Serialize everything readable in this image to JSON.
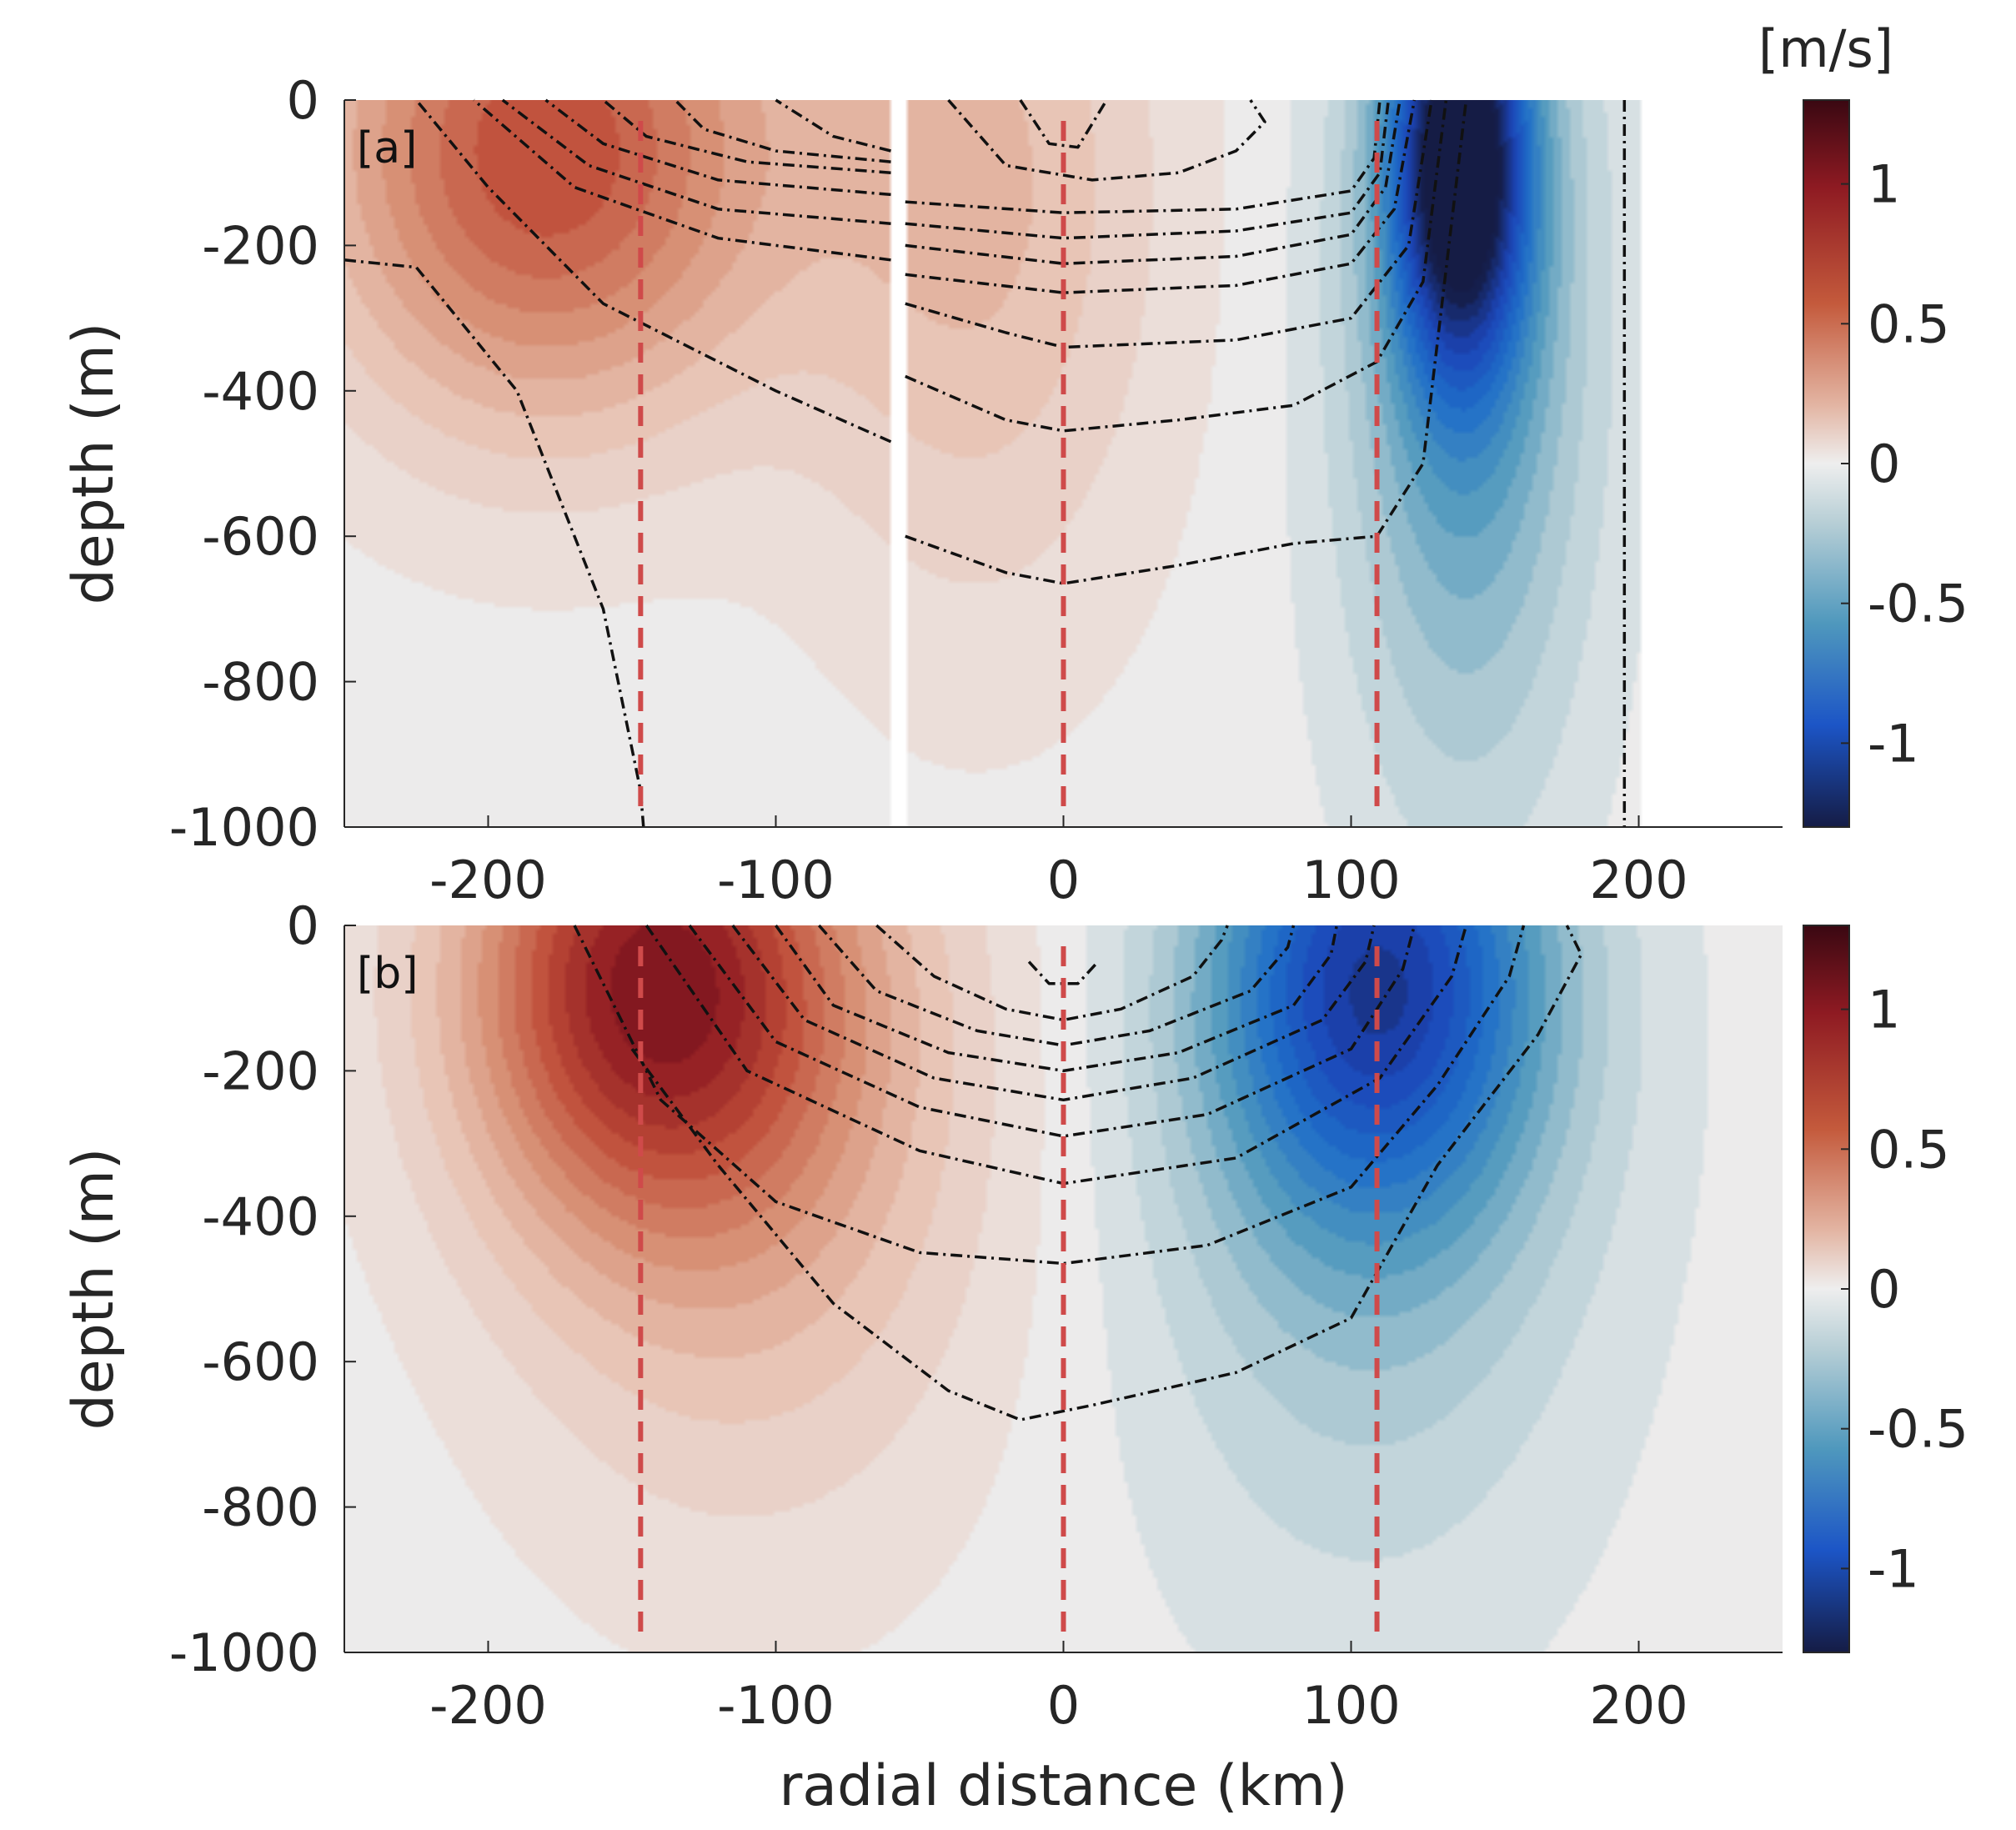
{
  "colors": {
    "positive_max": "#3a0812",
    "positive_strong": "#b83a2a",
    "positive_mid": "#d98a72",
    "positive_light": "#f0d9d0",
    "neutral": "#ececec",
    "negative_light": "#c9d9de",
    "negative_mid": "#5fa0ba",
    "negative_strong": "#1f5fc8",
    "negative_max": "#151c45",
    "contour": "#111111",
    "reference_line": "#cf4a4a"
  },
  "chart_data": {
    "type": "heatmap",
    "description_units": "[m/s]",
    "xlabel": "radial distance (km)",
    "ylabel": "depth (m)",
    "xlim": [
      -250,
      250
    ],
    "ylim": [
      -1000,
      0
    ],
    "x_ticks": [
      -200,
      -100,
      0,
      100,
      200
    ],
    "x_tick_labels": [
      "-200",
      "-100",
      "0",
      "100",
      "200"
    ],
    "y_ticks": [
      0,
      -200,
      -400,
      -600,
      -800,
      -1000
    ],
    "y_tick_labels": [
      "0",
      "-200",
      "-400",
      "-600",
      "-800",
      "-1000"
    ],
    "colorbar": {
      "label": "[m/s]",
      "range": [
        -1.3,
        1.3
      ],
      "ticks": [
        1,
        0.5,
        0,
        -0.5,
        -1
      ],
      "tick_labels": [
        "1",
        "0.5",
        "0",
        "-0.5",
        "-1"
      ]
    },
    "reference_lines_x": [
      -147,
      0,
      109
    ],
    "panels": [
      {
        "label": "[a]",
        "gap_x": [
          -60,
          -55
        ],
        "right_limit_x": 200,
        "jets": [
          {
            "x": -180,
            "depth": -70,
            "value": 0.75,
            "sx": 55,
            "sz": 260
          },
          {
            "x": -30,
            "depth": -120,
            "value": 0.3,
            "sx": 45,
            "sz": 400
          },
          {
            "x": 138,
            "depth": -80,
            "value": -1.25,
            "sx": 16,
            "sz": 200
          },
          {
            "x": 140,
            "depth": -300,
            "value": -0.5,
            "sx": 30,
            "sz": 450
          }
        ],
        "contours": [
          {
            "level": 1,
            "x": [
              -250,
              -225,
              -190,
              -160,
              -147,
              -146
            ],
            "depth": [
              -220,
              -230,
              -400,
              -700,
              -950,
              -1000
            ]
          },
          {
            "level": 2,
            "x": [
              -60,
              -100,
              -160,
              -200,
              -225
            ],
            "depth": [
              -470,
              -400,
              -280,
              -120,
              0
            ]
          },
          {
            "level": 3,
            "x": [
              -60,
              -120,
              -170,
              -205
            ],
            "depth": [
              -220,
              -190,
              -120,
              0
            ]
          },
          {
            "level": 4,
            "x": [
              -60,
              -120,
              -165,
              -195
            ],
            "depth": [
              -170,
              -150,
              -90,
              0
            ]
          },
          {
            "level": 5,
            "x": [
              -60,
              -120,
              -160,
              -180
            ],
            "depth": [
              -130,
              -110,
              -60,
              0
            ]
          },
          {
            "level": 6,
            "x": [
              -60,
              -110,
              -145,
              -160
            ],
            "depth": [
              -100,
              -85,
              -50,
              0
            ]
          },
          {
            "level": 7,
            "x": [
              -60,
              -100,
              -125,
              -135
            ],
            "depth": [
              -85,
              -70,
              -40,
              0
            ]
          },
          {
            "level": 8,
            "x": [
              -60,
              -80,
              -100
            ],
            "depth": [
              -70,
              -50,
              0
            ]
          },
          {
            "level": 9,
            "x": [
              -55,
              -20,
              0,
              40,
              80,
              109,
              125,
              140
            ],
            "depth": [
              -600,
              -650,
              -665,
              -640,
              -610,
              -600,
              -500,
              0
            ]
          },
          {
            "level": 10,
            "x": [
              -55,
              -20,
              0,
              40,
              80,
              109,
              125,
              133
            ],
            "depth": [
              -380,
              -440,
              -455,
              -440,
              -420,
              -360,
              -250,
              0
            ]
          },
          {
            "level": 11,
            "x": [
              -55,
              -20,
              0,
              60,
              100,
              120,
              128
            ],
            "depth": [
              -280,
              -320,
              -340,
              -330,
              -300,
              -200,
              0
            ]
          },
          {
            "level": 12,
            "x": [
              -55,
              0,
              60,
              100,
              115,
              122
            ],
            "depth": [
              -240,
              -265,
              -255,
              -225,
              -150,
              0
            ]
          },
          {
            "level": 13,
            "x": [
              -55,
              0,
              60,
              100,
              112,
              117
            ],
            "depth": [
              -200,
              -225,
              -215,
              -185,
              -120,
              0
            ]
          },
          {
            "level": 14,
            "x": [
              -55,
              0,
              60,
              100,
              110,
              113
            ],
            "depth": [
              -170,
              -190,
              -180,
              -155,
              -100,
              0
            ]
          },
          {
            "level": 15,
            "x": [
              -55,
              0,
              60,
              100,
              108,
              110
            ],
            "depth": [
              -140,
              -155,
              -150,
              -125,
              -80,
              0
            ]
          },
          {
            "level": 16,
            "x": [
              -40,
              -20,
              10,
              40,
              60,
              70,
              65
            ],
            "depth": [
              0,
              -90,
              -110,
              -100,
              -70,
              -30,
              0
            ]
          },
          {
            "level": 17,
            "x": [
              -15,
              -5,
              5,
              15
            ],
            "depth": [
              0,
              -60,
              -65,
              0
            ]
          },
          {
            "level": 18,
            "x": [
              195,
              195
            ],
            "depth": [
              0,
              -1000
            ]
          }
        ]
      },
      {
        "label": "[b]",
        "jets": [
          {
            "x": -145,
            "depth": -70,
            "value": 0.8,
            "sx": 45,
            "sz": 230
          },
          {
            "x": -110,
            "depth": -250,
            "value": 0.35,
            "sx": 60,
            "sz": 380
          },
          {
            "x": 110,
            "depth": -70,
            "value": -0.85,
            "sx": 40,
            "sz": 230
          },
          {
            "x": 105,
            "depth": -300,
            "value": -0.3,
            "sx": 55,
            "sz": 420
          }
        ],
        "contours": [
          {
            "level": 1,
            "x": [
              -150,
              -120,
              -80,
              -40,
              -15,
              10,
              60,
              100,
              130,
              165,
              180,
              175
            ],
            "depth": [
              -170,
              -330,
              -520,
              -640,
              -680,
              -660,
              -615,
              -540,
              -330,
              -150,
              -40,
              0
            ]
          },
          {
            "level": 2,
            "x": [
              -170,
              -140,
              -100,
              -50,
              0,
              50,
              100,
              130,
              155,
              160
            ],
            "depth": [
              0,
              -240,
              -380,
              -450,
              -465,
              -440,
              -360,
              -220,
              -70,
              0
            ]
          },
          {
            "level": 3,
            "x": [
              -145,
              -110,
              -50,
              0,
              60,
              110,
              135,
              140
            ],
            "depth": [
              0,
              -200,
              -310,
              -355,
              -320,
              -210,
              -70,
              0
            ]
          },
          {
            "level": 4,
            "x": [
              -130,
              -100,
              -50,
              0,
              50,
              100,
              118,
              122
            ],
            "depth": [
              0,
              -160,
              -250,
              -290,
              -260,
              -170,
              -60,
              0
            ]
          },
          {
            "level": 5,
            "x": [
              -115,
              -90,
              -45,
              0,
              45,
              90,
              105,
              108
            ],
            "depth": [
              0,
              -130,
              -210,
              -240,
              -210,
              -130,
              -50,
              0
            ]
          },
          {
            "level": 6,
            "x": [
              -100,
              -80,
              -40,
              0,
              40,
              80,
              93,
              95
            ],
            "depth": [
              0,
              -110,
              -175,
              -200,
              -175,
              -110,
              -40,
              0
            ]
          },
          {
            "level": 7,
            "x": [
              -85,
              -65,
              -30,
              0,
              30,
              65,
              78,
              80
            ],
            "depth": [
              0,
              -90,
              -145,
              -165,
              -145,
              -90,
              -30,
              0
            ]
          },
          {
            "level": 8,
            "x": [
              -65,
              -45,
              -20,
              0,
              20,
              45,
              55,
              57
            ],
            "depth": [
              0,
              -70,
              -115,
              -130,
              -115,
              -70,
              -20,
              0
            ]
          },
          {
            "level": 9,
            "x": [
              -12,
              -5,
              5,
              12
            ],
            "depth": [
              -50,
              -80,
              -80,
              -50
            ]
          }
        ]
      }
    ]
  }
}
